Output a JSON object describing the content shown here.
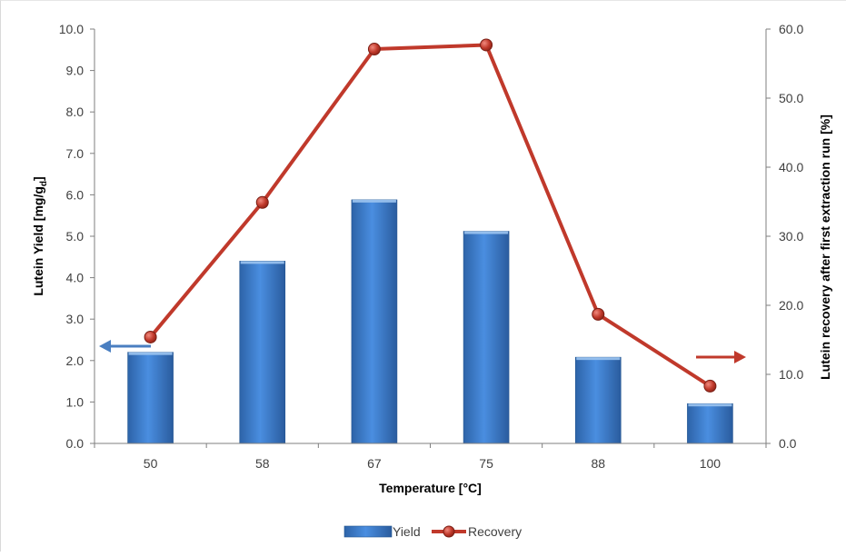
{
  "chart_data": {
    "type": "bar",
    "title": "",
    "categories": [
      "50",
      "58",
      "67",
      "75",
      "88",
      "100"
    ],
    "xlabel": "Temperature [°C]",
    "ylabel": "Lutein Yield [mg/gd]",
    "ylabel_main": "Lutein Yield [mg/g",
    "ylabel_sub": "d",
    "ylabel_end": "]",
    "y2label": "Lutein recovery after first extraction run [%]",
    "ylim": [
      0,
      10
    ],
    "y2lim": [
      0,
      60
    ],
    "yticks": [
      "0.0",
      "1.0",
      "2.0",
      "3.0",
      "4.0",
      "5.0",
      "6.0",
      "7.0",
      "8.0",
      "9.0",
      "10.0"
    ],
    "y2ticks": [
      "0.0",
      "10.0",
      "20.0",
      "30.0",
      "40.0",
      "50.0",
      "60.0"
    ],
    "grid": false,
    "legend_position": "bottom",
    "series": [
      {
        "name": "Yield",
        "type": "bar",
        "axis": "left",
        "color": "#3a78c9",
        "values": [
          2.2,
          4.4,
          5.88,
          5.12,
          2.08,
          0.96
        ]
      },
      {
        "name": "Recovery",
        "type": "line",
        "axis": "right",
        "color": "#c0392b",
        "values": [
          15.4,
          34.9,
          57.1,
          57.7,
          18.7,
          8.3
        ]
      }
    ],
    "annotations": [
      {
        "kind": "arrow",
        "direction": "left",
        "meaning": "yield refers to left axis",
        "color": "#4a7fc1"
      },
      {
        "kind": "arrow",
        "direction": "right",
        "meaning": "recovery refers to right axis",
        "color": "#c0392b"
      }
    ]
  }
}
